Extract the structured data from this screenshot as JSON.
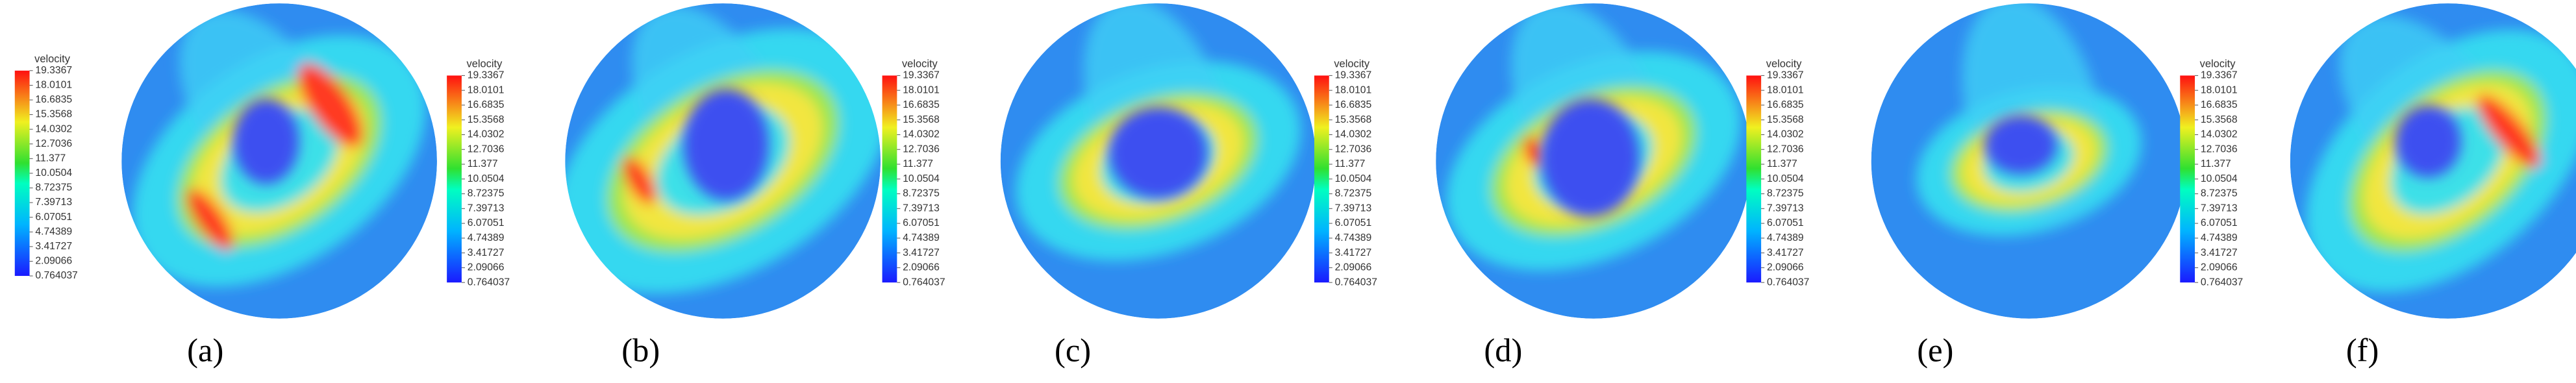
{
  "colorbar": {
    "title": "velocity",
    "ticks": [
      19.3367,
      18.0101,
      16.6835,
      15.3568,
      14.0302,
      12.7036,
      11.377,
      10.0504,
      8.72375,
      7.39713,
      6.07051,
      4.74389,
      3.41727,
      2.09066,
      0.764037
    ]
  },
  "panels": [
    {
      "label": "(a)"
    },
    {
      "label": "(b)"
    },
    {
      "label": "(c)"
    },
    {
      "label": "(d)"
    },
    {
      "label": "(e)"
    },
    {
      "label": "(f)"
    }
  ]
}
